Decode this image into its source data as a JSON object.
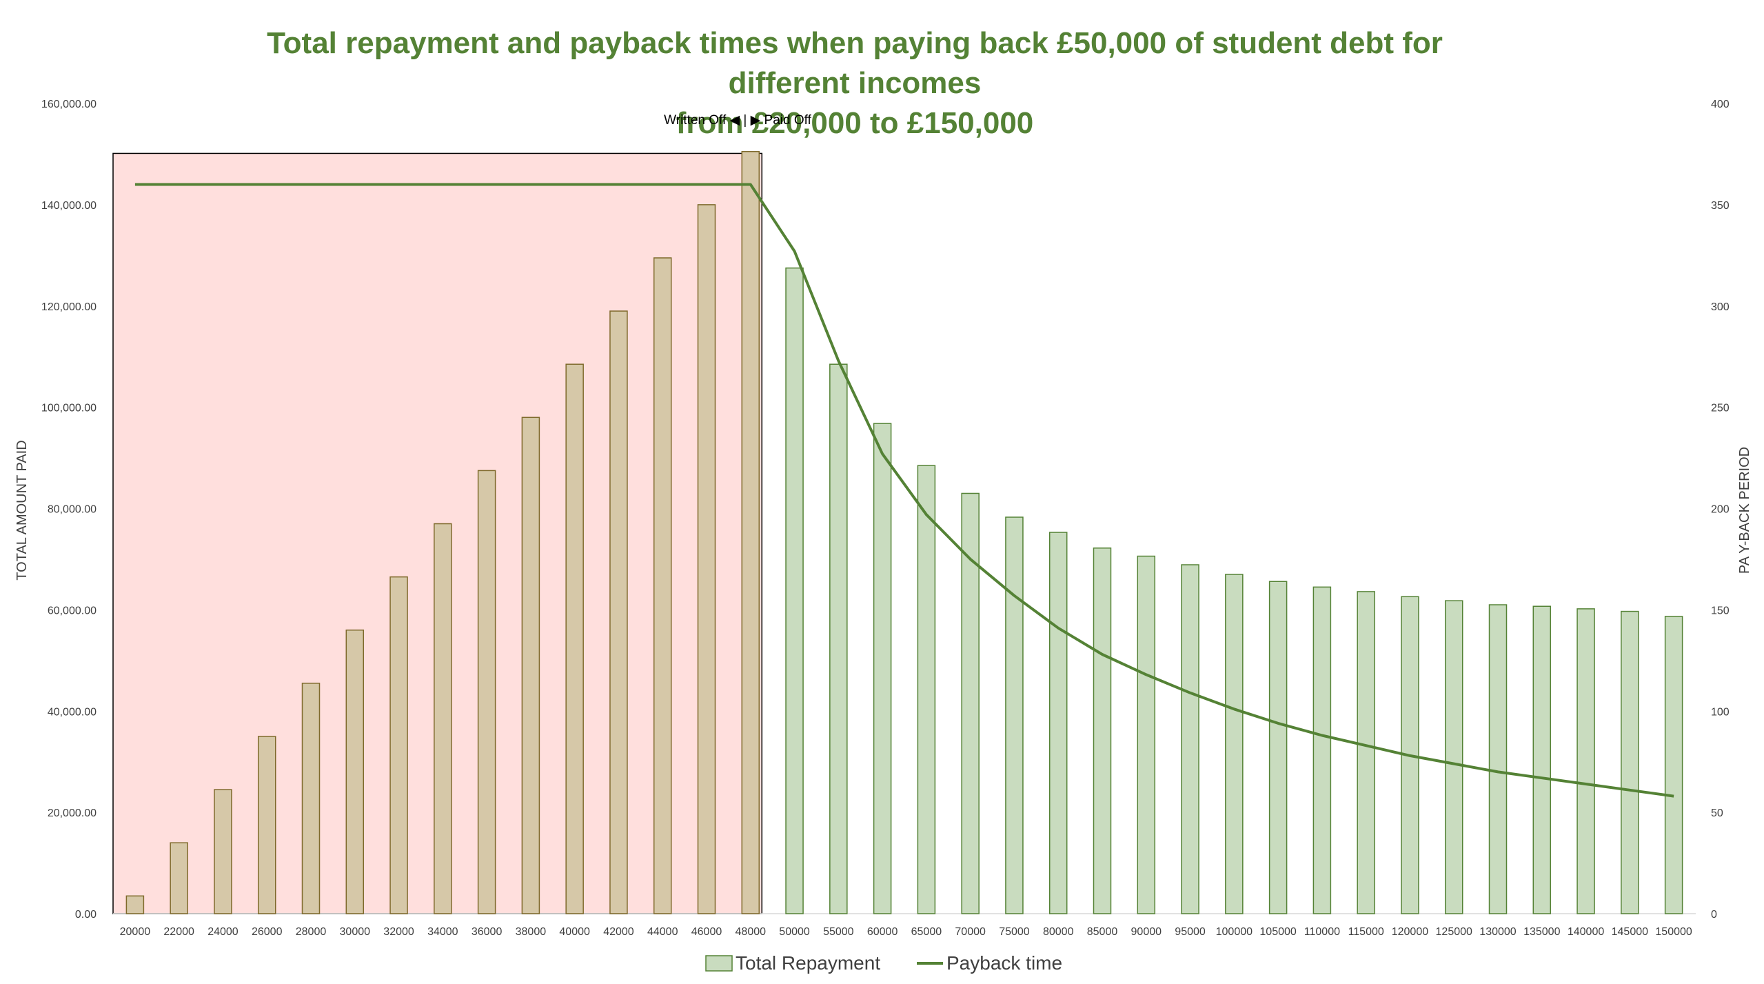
{
  "chart_data": {
    "type": "bar",
    "title_line1": "Total repayment and payback times when paying back £50,000 of student debt for different incomes",
    "title_line2": "from £20,000 to £150,000",
    "ylabel": "TOTAL AMOUNT PAID",
    "y2label": "PA Y-BACK PERIOD",
    "ylim": [
      0,
      160000
    ],
    "y2lim": [
      0,
      400
    ],
    "y_ticks": [
      "0.00",
      "20,000.00",
      "40,000.00",
      "60,000.00",
      "80,000.00",
      "100,000.00",
      "120,000.00",
      "140,000.00",
      "160,000.00"
    ],
    "y2_ticks": [
      "0",
      "50",
      "100",
      "150",
      "200",
      "250",
      "300",
      "350",
      "400"
    ],
    "annotation": "Written Off ◀ | ▶ Paid Off",
    "categories": [
      "20000",
      "22000",
      "24000",
      "26000",
      "28000",
      "30000",
      "32000",
      "34000",
      "36000",
      "38000",
      "40000",
      "42000",
      "44000",
      "46000",
      "48000",
      "50000",
      "55000",
      "60000",
      "65000",
      "70000",
      "75000",
      "80000",
      "85000",
      "90000",
      "95000",
      "100000",
      "105000",
      "110000",
      "115000",
      "120000",
      "125000",
      "130000",
      "135000",
      "140000",
      "145000",
      "150000"
    ],
    "series": [
      {
        "name": "Total Repayment",
        "kind": "bar",
        "color": "#c9dcbf",
        "values": [
          3500,
          14000,
          24500,
          35000,
          45500,
          56000,
          66500,
          77000,
          87500,
          98000,
          108500,
          119000,
          129500,
          140000,
          150500,
          127500,
          108500,
          96800,
          88500,
          83000,
          78300,
          75300,
          72200,
          70600,
          68900,
          67000,
          65600,
          64500,
          63600,
          62600,
          61800,
          61000,
          60700,
          60200,
          59700,
          58700
        ]
      },
      {
        "name": "Payback time",
        "kind": "line",
        "color": "#548235",
        "values": [
          360,
          360,
          360,
          360,
          360,
          360,
          360,
          360,
          360,
          360,
          360,
          360,
          360,
          360,
          360,
          327,
          273,
          227,
          197,
          175,
          157,
          141,
          128,
          118,
          109,
          101,
          94,
          88,
          83,
          78,
          74,
          70,
          67,
          64,
          61,
          58
        ]
      }
    ],
    "written_off_count": 15,
    "colors": {
      "accent": "#548235",
      "written_off_bg": "#ffdfdd",
      "written_off_bar": "#d6c8a8",
      "written_off_bar_stroke": "#7f6a2c",
      "paid_bar": "#c9dcbf",
      "paid_bar_stroke": "#548235"
    },
    "legend_position": "bottom"
  }
}
